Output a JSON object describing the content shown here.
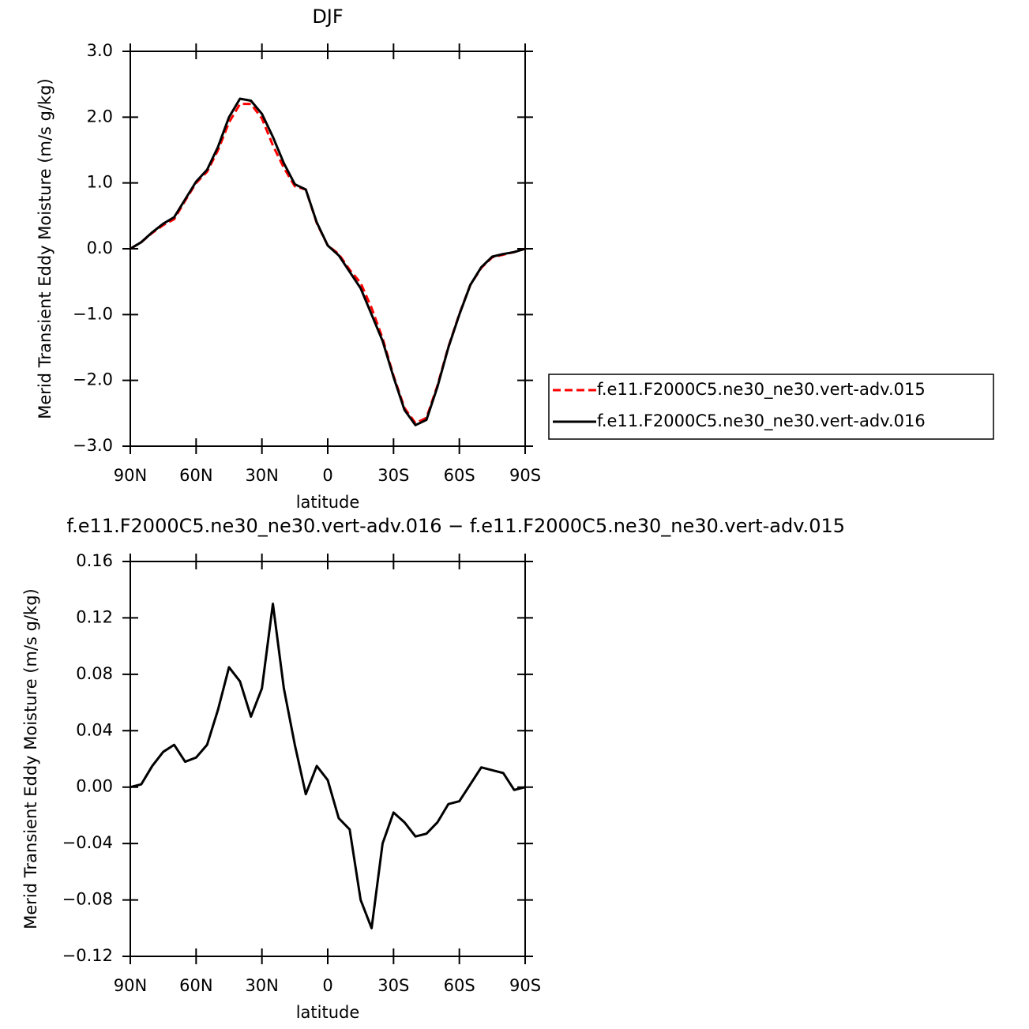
{
  "chart_data": [
    {
      "type": "line",
      "title": "DJF",
      "x_label": "latitude",
      "y_label": "Merid Transient Eddy Moisture (m/s g/kg)",
      "x": [
        90,
        85,
        80,
        75,
        70,
        65,
        60,
        55,
        50,
        45,
        40,
        35,
        30,
        25,
        20,
        15,
        10,
        5,
        0,
        -5,
        -10,
        -15,
        -20,
        -25,
        -30,
        -35,
        -40,
        -45,
        -50,
        -55,
        -60,
        -65,
        -70,
        -75,
        -80,
        -85,
        -90
      ],
      "series": [
        {
          "name": "f.e11.F2000C5.ne30_ne30.vert-adv.015",
          "color": "#ff0000",
          "dash": true,
          "values": [
            0,
            0.1,
            0.24,
            0.36,
            0.45,
            0.73,
            1.0,
            1.17,
            1.5,
            1.92,
            2.2,
            2.2,
            1.98,
            1.57,
            1.23,
            0.95,
            0.9,
            0.39,
            0.05,
            -0.08,
            -0.32,
            -0.52,
            -0.9,
            -1.36,
            -1.93,
            -2.42,
            -2.65,
            -2.57,
            -2.08,
            -1.49,
            -0.99,
            -0.55,
            -0.29,
            -0.13,
            -0.09,
            -0.05,
            0
          ]
        },
        {
          "name": "f.e11.F2000C5.ne30_ne30.vert-adv.016",
          "color": "#000000",
          "dash": false,
          "values": [
            0,
            0.1,
            0.25,
            0.38,
            0.48,
            0.75,
            1.02,
            1.2,
            1.55,
            2.0,
            2.28,
            2.25,
            2.05,
            1.7,
            1.3,
            0.98,
            0.9,
            0.4,
            0.05,
            -0.1,
            -0.35,
            -0.6,
            -1.0,
            -1.4,
            -1.95,
            -2.45,
            -2.68,
            -2.6,
            -2.1,
            -1.5,
            -1.0,
            -0.55,
            -0.28,
            -0.12,
            -0.08,
            -0.05,
            0
          ]
        }
      ],
      "xlim": [
        90,
        -90
      ],
      "xticks": [
        {
          "value": 90,
          "label": "90N"
        },
        {
          "value": 60,
          "label": "60N"
        },
        {
          "value": 30,
          "label": "30N"
        },
        0,
        {
          "value": -30,
          "label": "30S"
        },
        {
          "value": -60,
          "label": "60S"
        },
        {
          "value": -90,
          "label": "90S"
        }
      ],
      "ylim": [
        -3,
        3
      ],
      "yticks": [
        {
          "value": 3,
          "label": "3.0"
        },
        {
          "value": 2,
          "label": "2.0"
        },
        {
          "value": 1,
          "label": "1.0"
        },
        {
          "value": 0,
          "label": "0.0"
        },
        {
          "value": -1,
          "label": "−1.0"
        },
        {
          "value": -2,
          "label": "−2.0"
        },
        {
          "value": -3,
          "label": "−3.0"
        }
      ],
      "legend": "right"
    },
    {
      "type": "line",
      "title": "f.e11.F2000C5.ne30_ne30.vert-adv.016 − f.e11.F2000C5.ne30_ne30.vert-adv.015",
      "x_label": "latitude",
      "y_label": "Merid Transient Eddy Moisture (m/s g/kg)",
      "x": [
        90,
        85,
        80,
        75,
        70,
        65,
        60,
        55,
        50,
        45,
        40,
        35,
        30,
        25,
        20,
        15,
        10,
        5,
        0,
        -5,
        -10,
        -15,
        -20,
        -25,
        -30,
        -35,
        -40,
        -45,
        -50,
        -55,
        -60,
        -65,
        -70,
        -75,
        -80,
        -85,
        -90
      ],
      "series": [
        {
          "color": "#000000",
          "dash": false,
          "values": [
            0,
            0.002,
            0.015,
            0.025,
            0.03,
            0.018,
            0.021,
            0.03,
            0.055,
            0.085,
            0.075,
            0.05,
            0.07,
            0.13,
            0.07,
            0.03,
            -0.005,
            0.015,
            0.005,
            -0.022,
            -0.03,
            -0.08,
            -0.1,
            -0.04,
            -0.018,
            -0.025,
            -0.035,
            -0.033,
            -0.025,
            -0.012,
            -0.01,
            0.002,
            0.014,
            0.012,
            0.01,
            -0.002,
            0
          ]
        }
      ],
      "xlim": [
        90,
        -90
      ],
      "xticks": [
        {
          "value": 90,
          "label": "90N"
        },
        {
          "value": 60,
          "label": "60N"
        },
        {
          "value": 30,
          "label": "30N"
        },
        0,
        {
          "value": -30,
          "label": "30S"
        },
        {
          "value": -60,
          "label": "60S"
        },
        {
          "value": -90,
          "label": "90S"
        }
      ],
      "ylim": [
        -0.12,
        0.16
      ],
      "yticks": [
        0.16,
        0.12,
        0.08,
        0.04,
        {
          "value": 0,
          "label": "0.00"
        },
        {
          "value": -0.04,
          "label": "−0.04"
        },
        {
          "value": -0.08,
          "label": "−0.08"
        },
        {
          "value": -0.12,
          "label": "−0.12"
        }
      ]
    }
  ]
}
